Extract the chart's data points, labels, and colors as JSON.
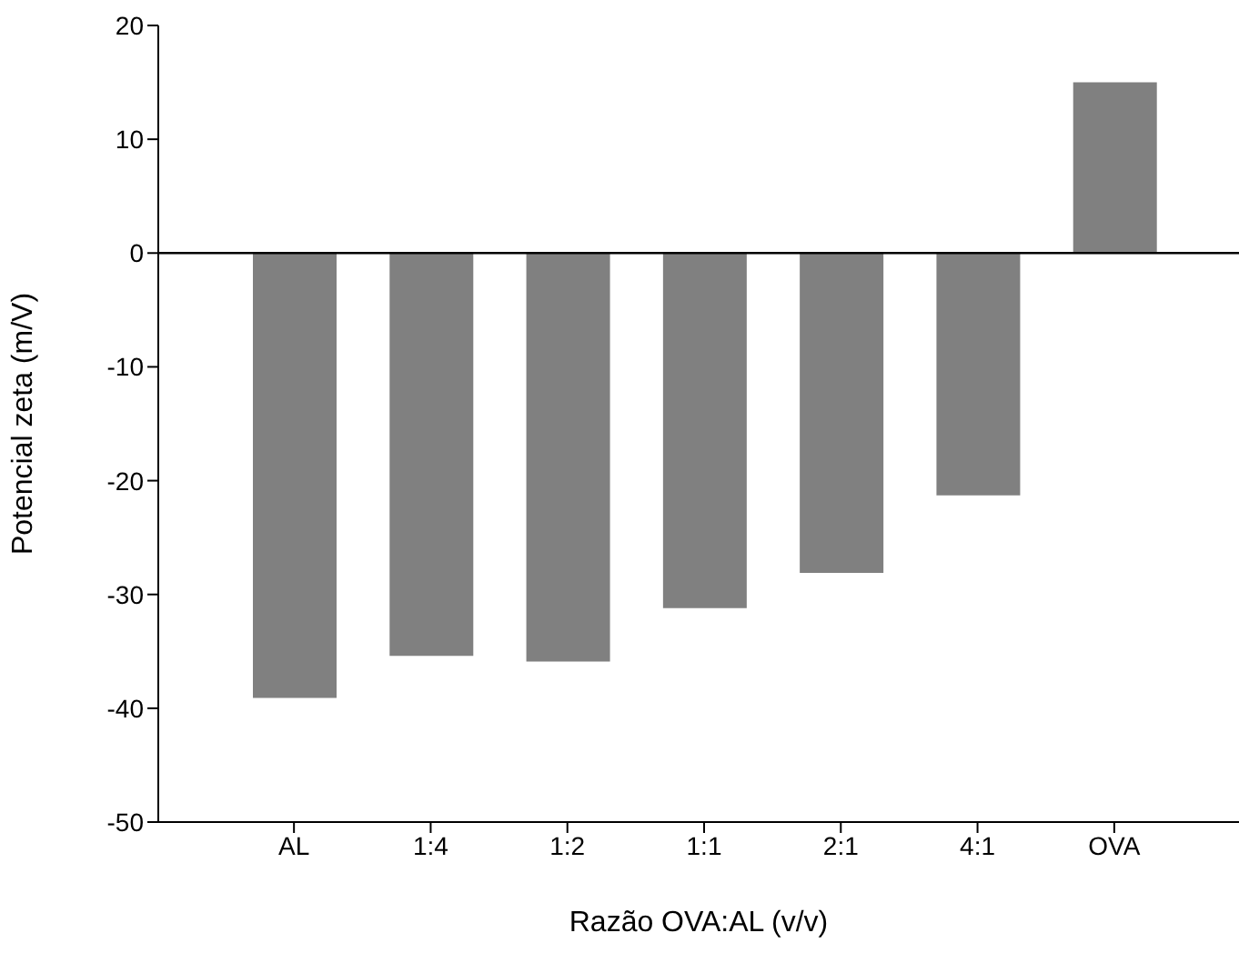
{
  "chart_data": {
    "type": "bar",
    "xlabel": "Razão OVA:AL (v/v)",
    "ylabel": "Potencial zeta (m/V)",
    "categories": [
      "AL",
      "1:4",
      "1:2",
      "1:1",
      "2:1",
      "4:1",
      "OVA"
    ],
    "values": [
      -39.1,
      -35.4,
      -35.9,
      -31.2,
      -28.1,
      -21.3,
      15
    ],
    "color": "#808080",
    "ylim": [
      -50,
      20
    ],
    "yticks": [
      -50,
      -40,
      -30,
      -20,
      -10,
      0,
      10,
      20
    ],
    "ref_lines": [
      {
        "axis": "y",
        "value": 0,
        "color": "#000000"
      }
    ],
    "grid": false,
    "legend": false
  }
}
